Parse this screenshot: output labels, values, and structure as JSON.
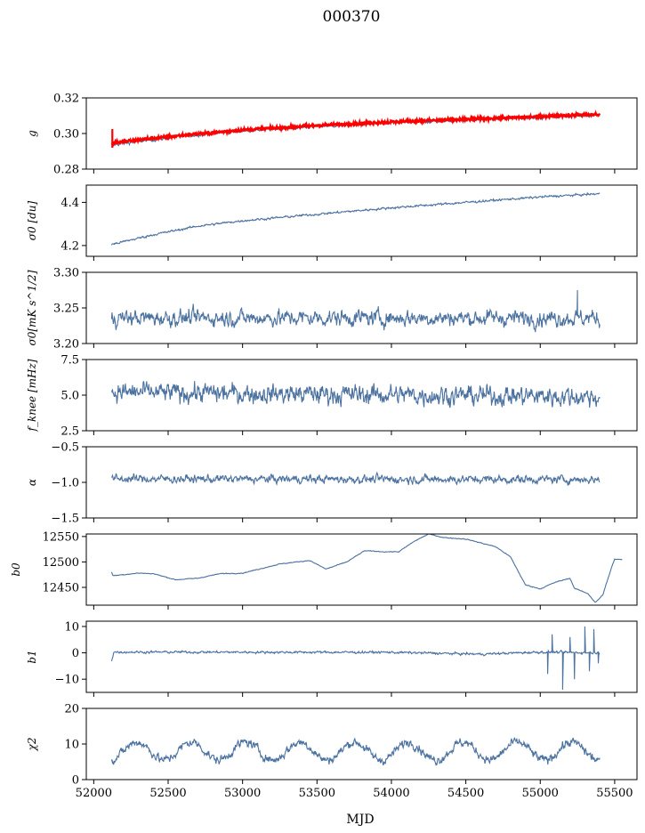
{
  "chart_data": {
    "type": "line",
    "title": "000370",
    "xlabel": "MJD",
    "xlim": [
      51950,
      55650
    ],
    "x_ticks": [
      "52000",
      "52500",
      "53000",
      "53500",
      "54000",
      "54500",
      "55000",
      "55500"
    ],
    "x_range_data": [
      52120,
      55400
    ],
    "grid": false,
    "series_color": "#4c72a0",
    "model_color": "#ff0000",
    "panels": [
      {
        "name": "g",
        "ylabel": "g",
        "ylim": [
          0.28,
          0.32
        ],
        "y_ticks": [
          "0.28",
          "0.30",
          "0.32"
        ],
        "trend": [
          [
            52120,
            0.2935
          ],
          [
            52300,
            0.2955
          ],
          [
            52600,
            0.2985
          ],
          [
            53000,
            0.3015
          ],
          [
            53500,
            0.304
          ],
          [
            54000,
            0.306
          ],
          [
            54500,
            0.3075
          ],
          [
            55000,
            0.309
          ],
          [
            55400,
            0.3105
          ]
        ],
        "noise": 0.0007,
        "model_trend": [
          [
            52120,
            0.2945
          ],
          [
            52300,
            0.2965
          ],
          [
            52600,
            0.299
          ],
          [
            53000,
            0.302
          ],
          [
            53500,
            0.3045
          ],
          [
            54000,
            0.3065
          ],
          [
            54500,
            0.308
          ],
          [
            55000,
            0.3095
          ],
          [
            55250,
            0.3105
          ],
          [
            55400,
            0.3105
          ]
        ],
        "model_noise": 0.0008,
        "model_spike": {
          "x": 52125,
          "ymin": 0.292,
          "ymax": 0.3025
        }
      },
      {
        "name": "sigma0-du",
        "ylabel": "σ0 [du]",
        "ylim": [
          4.15,
          4.48
        ],
        "y_ticks": [
          "4.2",
          "4.4"
        ],
        "y_tick_values": [
          4.2,
          4.4
        ],
        "trend": [
          [
            52120,
            4.205
          ],
          [
            52400,
            4.25
          ],
          [
            52700,
            4.29
          ],
          [
            53000,
            4.315
          ],
          [
            53500,
            4.345
          ],
          [
            54000,
            4.375
          ],
          [
            54500,
            4.4
          ],
          [
            55000,
            4.425
          ],
          [
            55400,
            4.44
          ]
        ],
        "noise": 0.004
      },
      {
        "name": "sigma0-mk",
        "ylabel": "σ0[mK s^1/2]",
        "ylim": [
          3.2,
          3.3
        ],
        "y_ticks": [
          "3.20",
          "3.25",
          "3.30"
        ],
        "trend": [
          [
            52120,
            3.236
          ],
          [
            55400,
            3.236
          ]
        ],
        "noise": 0.009,
        "spike": {
          "x": 55250,
          "y": 3.275
        }
      },
      {
        "name": "fknee",
        "ylabel": "f_knee [mHz]",
        "ylim": [
          2.5,
          7.5
        ],
        "y_ticks": [
          "2.5",
          "5.0",
          "7.5"
        ],
        "trend": [
          [
            52120,
            5.2
          ],
          [
            55400,
            4.9
          ]
        ],
        "noise": 0.55
      },
      {
        "name": "alpha",
        "ylabel": "α",
        "ylim": [
          -1.5,
          -0.5
        ],
        "y_ticks": [
          "−1.5",
          "−1.0",
          "−0.5"
        ],
        "y_tick_values": [
          -1.5,
          -1.0,
          -0.5
        ],
        "trend": [
          [
            52120,
            -0.95
          ],
          [
            55400,
            -0.96
          ]
        ],
        "noise": 0.045
      },
      {
        "name": "b0",
        "ylabel": "b0",
        "ylim": [
          12415,
          12555
        ],
        "y_ticks": [
          "12450",
          "12500",
          "12550"
        ],
        "y_tick_values": [
          12450,
          12500,
          12550
        ],
        "trend": [
          [
            52120,
            12480
          ],
          [
            52130,
            12473
          ],
          [
            52300,
            12478
          ],
          [
            52400,
            12477
          ],
          [
            52550,
            12465
          ],
          [
            52700,
            12468
          ],
          [
            52850,
            12477
          ],
          [
            53000,
            12478
          ],
          [
            53250,
            12496
          ],
          [
            53450,
            12503
          ],
          [
            53560,
            12486
          ],
          [
            53700,
            12500
          ],
          [
            53820,
            12522
          ],
          [
            53950,
            12520
          ],
          [
            54050,
            12520
          ],
          [
            54150,
            12540
          ],
          [
            54250,
            12555
          ],
          [
            54350,
            12548
          ],
          [
            54500,
            12545
          ],
          [
            54700,
            12530
          ],
          [
            54800,
            12510
          ],
          [
            54900,
            12455
          ],
          [
            55000,
            12447
          ],
          [
            55100,
            12460
          ],
          [
            55200,
            12468
          ],
          [
            55230,
            12448
          ],
          [
            55320,
            12438
          ],
          [
            55370,
            12420
          ],
          [
            55420,
            12435
          ],
          [
            55480,
            12490
          ],
          [
            55500,
            12505
          ],
          [
            55550,
            12505
          ]
        ],
        "noise": 0.6
      },
      {
        "name": "b1",
        "ylabel": "b1",
        "ylim": [
          -15,
          12
        ],
        "y_ticks": [
          "−10",
          "0",
          "10"
        ],
        "y_tick_values": [
          -10,
          0,
          10
        ],
        "trend": [
          [
            52120,
            -3
          ],
          [
            52135,
            0.3
          ],
          [
            54000,
            0.2
          ],
          [
            54600,
            -0.5
          ],
          [
            55000,
            0.3
          ],
          [
            55400,
            0
          ]
        ],
        "noise": 0.35,
        "spikes": [
          [
            55050,
            -8
          ],
          [
            55080,
            7
          ],
          [
            55150,
            -14
          ],
          [
            55200,
            6
          ],
          [
            55230,
            -10
          ],
          [
            55300,
            10
          ],
          [
            55330,
            -7
          ],
          [
            55360,
            9
          ],
          [
            55390,
            -4
          ]
        ]
      },
      {
        "name": "chi2",
        "ylabel": "χ2",
        "ylim": [
          0,
          20
        ],
        "y_ticks": [
          "0",
          "10",
          "20"
        ],
        "trend": [
          [
            52120,
            8
          ],
          [
            55400,
            8
          ]
        ],
        "noise": 1.0,
        "osc_amplitude": 2.5,
        "osc_period": 365
      }
    ]
  }
}
